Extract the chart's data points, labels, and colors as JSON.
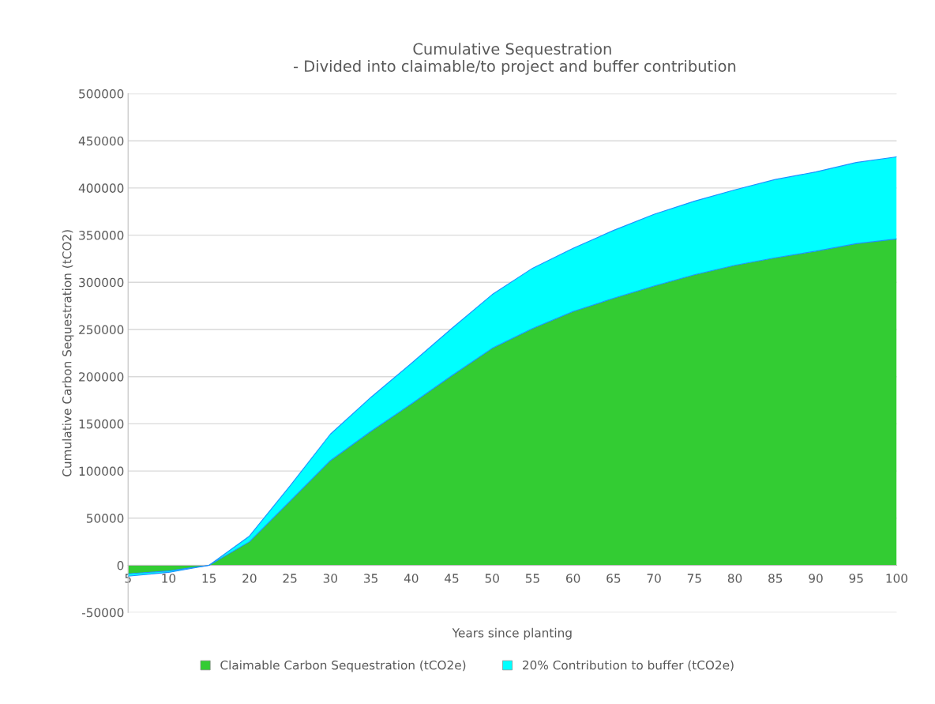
{
  "chart_data": {
    "type": "area",
    "stacked": true,
    "title": "Cumulative Sequestration\n - Divided into claimable/to project and buffer contribution",
    "xlabel": "Years since planting",
    "ylabel": "Cumulative Carbon Sequestration (tCO2)",
    "x": [
      5,
      10,
      15,
      20,
      25,
      30,
      35,
      40,
      45,
      50,
      55,
      60,
      65,
      70,
      75,
      80,
      85,
      90,
      95,
      100
    ],
    "series": [
      {
        "name": "Claimable Carbon Sequestration (tCO2e)",
        "color": "#33cc33",
        "values": [
          -9000,
          -6000,
          0,
          25000,
          68000,
          111000,
          142000,
          171000,
          201000,
          230000,
          251000,
          269000,
          283000,
          296000,
          308000,
          318000,
          326000,
          333000,
          341000,
          346000
        ]
      },
      {
        "name": "20% Contribution to buffer (tCO2e)",
        "color": "#00ffff",
        "values": [
          -2500,
          -1500,
          0,
          6000,
          16000,
          28000,
          36000,
          43000,
          50000,
          57000,
          64000,
          67000,
          72000,
          76000,
          78000,
          80000,
          83000,
          84000,
          86000,
          87000
        ]
      }
    ],
    "xlim": [
      5,
      100
    ],
    "xticks": [
      5,
      10,
      15,
      20,
      25,
      30,
      35,
      40,
      45,
      50,
      55,
      60,
      65,
      70,
      75,
      80,
      85,
      90,
      95,
      100
    ],
    "ylim": [
      -50000,
      500000
    ],
    "yticks": [
      -50000,
      0,
      50000,
      100000,
      150000,
      200000,
      250000,
      300000,
      350000,
      400000,
      450000,
      500000
    ],
    "grid": "y",
    "legend": "bottom"
  }
}
